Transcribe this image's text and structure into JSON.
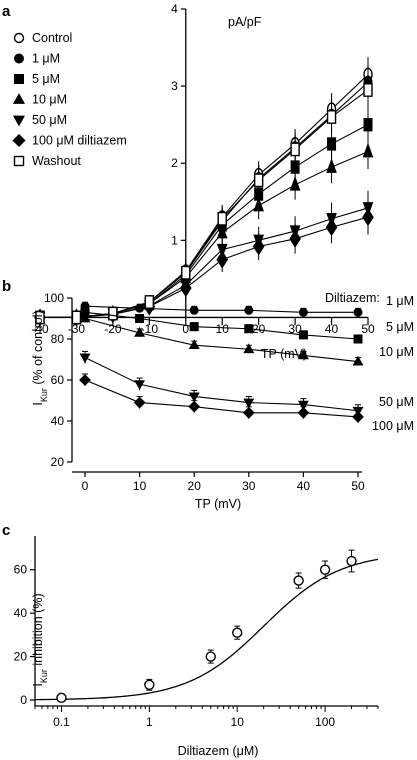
{
  "chart_data": [
    {
      "panel": "a",
      "type": "line",
      "xlabel": "TP (mV)",
      "ylabel": "",
      "units_label": "pA/pF",
      "xlim": [
        -40,
        50
      ],
      "ylim": [
        0,
        4
      ],
      "xticks": [
        -40,
        -30,
        -20,
        -10,
        0,
        10,
        20,
        30,
        40,
        50
      ],
      "yticks": [
        1,
        2,
        3,
        4
      ],
      "legend": "top-left",
      "x": [
        -40,
        -30,
        -20,
        -10,
        0,
        10,
        20,
        30,
        40,
        50
      ],
      "series": [
        {
          "name": "Control",
          "marker": "open-circle",
          "values": [
            0.0,
            0.0,
            0.05,
            0.2,
            0.6,
            1.3,
            1.85,
            2.25,
            2.7,
            3.15
          ]
        },
        {
          "name": "1 μM",
          "marker": "filled-circle",
          "values": [
            0.0,
            0.0,
            0.05,
            0.2,
            0.58,
            1.25,
            1.8,
            2.2,
            2.62,
            3.05
          ]
        },
        {
          "name": "5 μM",
          "marker": "filled-square",
          "values": [
            0.0,
            0.0,
            0.05,
            0.18,
            0.55,
            1.2,
            1.6,
            1.95,
            2.25,
            2.5
          ]
        },
        {
          "name": "10 μM",
          "marker": "filled-triangle-up",
          "values": [
            0.0,
            0.0,
            0.05,
            0.18,
            0.52,
            1.1,
            1.45,
            1.72,
            1.95,
            2.15
          ]
        },
        {
          "name": "50 μM",
          "marker": "filled-triangle-down",
          "values": [
            0.0,
            0.0,
            0.04,
            0.15,
            0.42,
            0.88,
            1.0,
            1.12,
            1.28,
            1.42
          ]
        },
        {
          "name": "100 μM diltiazem",
          "marker": "filled-diamond",
          "values": [
            0.0,
            0.0,
            0.04,
            0.14,
            0.38,
            0.75,
            0.92,
            1.02,
            1.17,
            1.3
          ]
        },
        {
          "name": "Washout",
          "marker": "open-square",
          "values": [
            0.0,
            0.0,
            0.05,
            0.2,
            0.58,
            1.28,
            1.78,
            2.18,
            2.6,
            2.95
          ]
        }
      ]
    },
    {
      "panel": "b",
      "type": "line",
      "xlabel": "TP (mV)",
      "ylabel_main": "I",
      "ylabel_sub": "Kur",
      "ylabel_rest": " (% of control)",
      "legend_title": "Diltiazem:",
      "xlim": [
        0,
        50
      ],
      "ylim": [
        20,
        100
      ],
      "xticks": [
        0,
        10,
        20,
        30,
        40,
        50
      ],
      "yticks": [
        20,
        40,
        60,
        80,
        100
      ],
      "x": [
        0,
        10,
        20,
        30,
        40,
        50
      ],
      "series": [
        {
          "name": "1 μM",
          "marker": "filled-circle",
          "values": [
            96,
            95,
            94,
            94,
            93,
            93
          ]
        },
        {
          "name": "5 μM",
          "marker": "filled-square",
          "values": [
            93,
            90,
            86,
            85,
            82,
            80
          ]
        },
        {
          "name": "10 μM",
          "marker": "filled-triangle-up",
          "values": [
            90,
            83,
            77,
            75,
            72,
            69
          ]
        },
        {
          "name": "50 μM",
          "marker": "filled-triangle-down",
          "values": [
            71,
            58,
            52,
            49,
            48,
            45
          ]
        },
        {
          "name": "100 μM",
          "marker": "filled-diamond",
          "values": [
            60,
            49,
            47,
            44,
            44,
            42
          ]
        }
      ]
    },
    {
      "panel": "c",
      "type": "scatter",
      "xlabel": "Diltiazem (μM)",
      "ylabel_main": "I",
      "ylabel_sub": "Kur",
      "ylabel_rest": " inhibition (%)",
      "xscale": "log",
      "xlim": [
        0.05,
        400
      ],
      "ylim": [
        0,
        70
      ],
      "xticks": [
        0.1,
        1,
        10,
        100
      ],
      "xtick_labels": [
        "0.1",
        "1",
        "10",
        "100"
      ],
      "yticks": [
        0,
        20,
        40,
        60
      ],
      "points": [
        {
          "x": 0.1,
          "y": 1,
          "err": 1
        },
        {
          "x": 1,
          "y": 7,
          "err": 2.5
        },
        {
          "x": 5,
          "y": 20,
          "err": 3
        },
        {
          "x": 10,
          "y": 31,
          "err": 3
        },
        {
          "x": 50,
          "y": 55,
          "err": 3.5
        },
        {
          "x": 100,
          "y": 60,
          "err": 4
        },
        {
          "x": 200,
          "y": 64,
          "err": 5
        }
      ],
      "fit_curve": {
        "model": "hill",
        "max": 68,
        "ic50": 20,
        "n": 1
      }
    }
  ],
  "labels": {
    "a": "a",
    "b": "b",
    "c": "c"
  }
}
